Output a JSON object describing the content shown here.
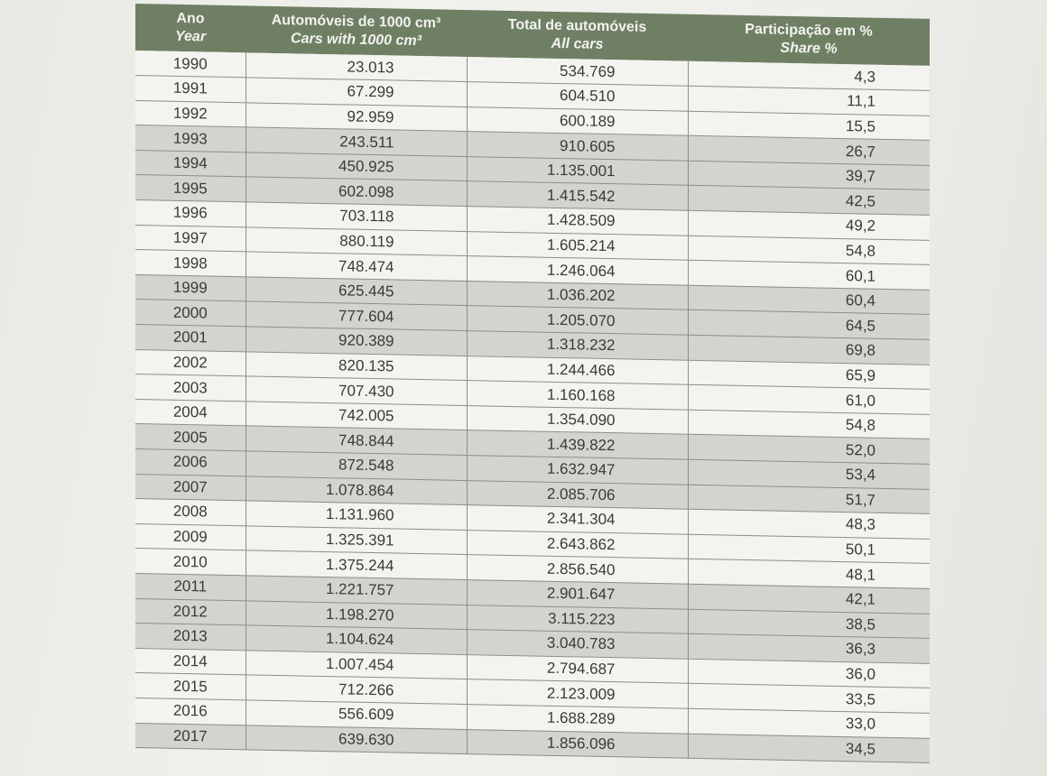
{
  "table": {
    "headers": {
      "year_pt": "Ano",
      "year_en": "Year",
      "cars1000_pt": "Automóveis de 1000 cm³",
      "cars1000_en": "Cars with 1000 cm³",
      "total_pt": "Total de automóveis",
      "total_en": "All cars",
      "share_pt": "Participação em %",
      "share_en": "Share %"
    },
    "rows": [
      {
        "year": "1990",
        "cars1000": "23.013",
        "total": "534.769",
        "share": "4,3"
      },
      {
        "year": "1991",
        "cars1000": "67.299",
        "total": "604.510",
        "share": "11,1"
      },
      {
        "year": "1992",
        "cars1000": "92.959",
        "total": "600.189",
        "share": "15,5"
      },
      {
        "year": "1993",
        "cars1000": "243.511",
        "total": "910.605",
        "share": "26,7"
      },
      {
        "year": "1994",
        "cars1000": "450.925",
        "total": "1.135.001",
        "share": "39,7"
      },
      {
        "year": "1995",
        "cars1000": "602.098",
        "total": "1.415.542",
        "share": "42,5"
      },
      {
        "year": "1996",
        "cars1000": "703.118",
        "total": "1.428.509",
        "share": "49,2"
      },
      {
        "year": "1997",
        "cars1000": "880.119",
        "total": "1.605.214",
        "share": "54,8"
      },
      {
        "year": "1998",
        "cars1000": "748.474",
        "total": "1.246.064",
        "share": "60,1"
      },
      {
        "year": "1999",
        "cars1000": "625.445",
        "total": "1.036.202",
        "share": "60,4"
      },
      {
        "year": "2000",
        "cars1000": "777.604",
        "total": "1.205.070",
        "share": "64,5"
      },
      {
        "year": "2001",
        "cars1000": "920.389",
        "total": "1.318.232",
        "share": "69,8"
      },
      {
        "year": "2002",
        "cars1000": "820.135",
        "total": "1.244.466",
        "share": "65,9"
      },
      {
        "year": "2003",
        "cars1000": "707.430",
        "total": "1.160.168",
        "share": "61,0"
      },
      {
        "year": "2004",
        "cars1000": "742.005",
        "total": "1.354.090",
        "share": "54,8"
      },
      {
        "year": "2005",
        "cars1000": "748.844",
        "total": "1.439.822",
        "share": "52,0"
      },
      {
        "year": "2006",
        "cars1000": "872.548",
        "total": "1.632.947",
        "share": "53,4"
      },
      {
        "year": "2007",
        "cars1000": "1.078.864",
        "total": "2.085.706",
        "share": "51,7"
      },
      {
        "year": "2008",
        "cars1000": "1.131.960",
        "total": "2.341.304",
        "share": "48,3"
      },
      {
        "year": "2009",
        "cars1000": "1.325.391",
        "total": "2.643.862",
        "share": "50,1"
      },
      {
        "year": "2010",
        "cars1000": "1.375.244",
        "total": "2.856.540",
        "share": "48,1"
      },
      {
        "year": "2011",
        "cars1000": "1.221.757",
        "total": "2.901.647",
        "share": "42,1"
      },
      {
        "year": "2012",
        "cars1000": "1.198.270",
        "total": "3.115.223",
        "share": "38,5"
      },
      {
        "year": "2013",
        "cars1000": "1.104.624",
        "total": "3.040.783",
        "share": "36,3"
      },
      {
        "year": "2014",
        "cars1000": "1.007.454",
        "total": "2.794.687",
        "share": "36,0"
      },
      {
        "year": "2015",
        "cars1000": "712.266",
        "total": "2.123.009",
        "share": "33,5"
      },
      {
        "year": "2016",
        "cars1000": "556.609",
        "total": "1.688.289",
        "share": "33,0"
      },
      {
        "year": "2017",
        "cars1000": "639.630",
        "total": "1.856.096",
        "share": "34,5"
      }
    ]
  }
}
